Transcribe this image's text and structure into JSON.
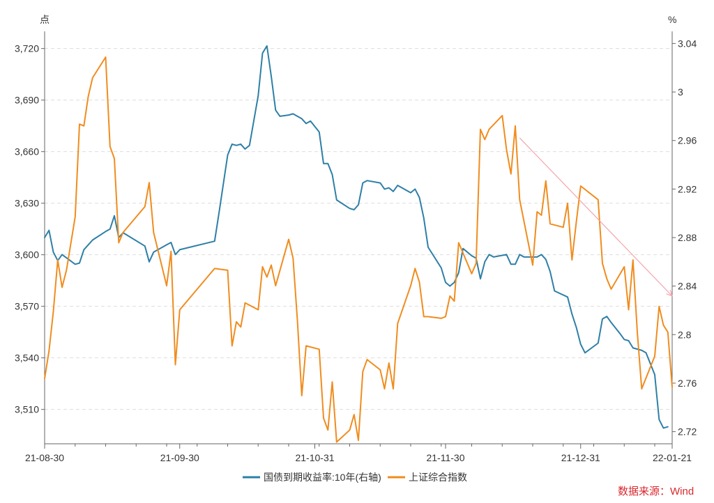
{
  "chart_data": {
    "type": "line",
    "title": "",
    "left_axis": {
      "unit_label": "点",
      "min": 3490,
      "max": 3730,
      "ticks": [
        3510,
        3540,
        3570,
        3600,
        3630,
        3660,
        3690,
        3720
      ],
      "tick_labels": [
        "3,510",
        "3,540",
        "3,570",
        "3,600",
        "3,630",
        "3,660",
        "3,690",
        "3,720"
      ]
    },
    "right_axis": {
      "unit_label": "%",
      "min": 2.71,
      "max": 3.05,
      "ticks": [
        2.72,
        2.76,
        2.8,
        2.84,
        2.88,
        2.92,
        2.96,
        3.0,
        3.04
      ],
      "tick_labels": [
        "2.72",
        "2.76",
        "2.8",
        "2.84",
        "2.88",
        "2.92",
        "2.96",
        "3",
        "3.04"
      ]
    },
    "x_axis": {
      "start": "2021-08-30",
      "end": "2022-01-21",
      "ticks": [
        "2021-08-30",
        "2021-09-30",
        "2021-10-31",
        "2021-11-30",
        "2021-12-31",
        "2022-01-21"
      ],
      "tick_labels": [
        "21-08-30",
        "21-09-30",
        "21-10-31",
        "21-11-30",
        "21-12-31",
        "22-01-21"
      ]
    },
    "grid": "horizontal-dashed",
    "legend_position": "bottom",
    "source": "数据来源：Wind",
    "series": [
      {
        "name": "国债到期收益率:10年(右轴)",
        "axis": "right",
        "color": "#2e7fa6",
        "points": [
          [
            "2021-08-30",
            2.88
          ],
          [
            "2021-08-31",
            2.886
          ],
          [
            "2021-09-01",
            2.868
          ],
          [
            "2021-09-02",
            2.861
          ],
          [
            "2021-09-03",
            2.866
          ],
          [
            "2021-09-06",
            2.858
          ],
          [
            "2021-09-07",
            2.859
          ],
          [
            "2021-09-08",
            2.87
          ],
          [
            "2021-09-10",
            2.878
          ],
          [
            "2021-09-13",
            2.885
          ],
          [
            "2021-09-14",
            2.887
          ],
          [
            "2021-09-15",
            2.898
          ],
          [
            "2021-09-16",
            2.88
          ],
          [
            "2021-09-17",
            2.884
          ],
          [
            "2021-09-22",
            2.873
          ],
          [
            "2021-09-23",
            2.86
          ],
          [
            "2021-09-24",
            2.868
          ],
          [
            "2021-09-26",
            2.872
          ],
          [
            "2021-09-27",
            2.874
          ],
          [
            "2021-09-28",
            2.876
          ],
          [
            "2021-09-29",
            2.866
          ],
          [
            "2021-09-30",
            2.87
          ],
          [
            "2021-10-08",
            2.877
          ],
          [
            "2021-10-09",
            2.9
          ],
          [
            "2021-10-11",
            2.948
          ],
          [
            "2021-10-12",
            2.957
          ],
          [
            "2021-10-13",
            2.956
          ],
          [
            "2021-10-14",
            2.957
          ],
          [
            "2021-10-15",
            2.953
          ],
          [
            "2021-10-16",
            2.956
          ],
          [
            "2021-10-18",
            2.997
          ],
          [
            "2021-10-19",
            3.032
          ],
          [
            "2021-10-20",
            3.038
          ],
          [
            "2021-10-21",
            3.013
          ],
          [
            "2021-10-22",
            2.985
          ],
          [
            "2021-10-23",
            2.98
          ],
          [
            "2021-10-25",
            2.981
          ],
          [
            "2021-10-26",
            2.982
          ],
          [
            "2021-10-27",
            2.98
          ],
          [
            "2021-10-28",
            2.978
          ],
          [
            "2021-10-29",
            2.974
          ],
          [
            "2021-10-30",
            2.976
          ],
          [
            "2021-11-01",
            2.967
          ],
          [
            "2021-11-02",
            2.941
          ],
          [
            "2021-11-03",
            2.941
          ],
          [
            "2021-11-04",
            2.932
          ],
          [
            "2021-11-05",
            2.911
          ],
          [
            "2021-11-08",
            2.904
          ],
          [
            "2021-11-09",
            2.903
          ],
          [
            "2021-11-10",
            2.907
          ],
          [
            "2021-11-11",
            2.925
          ],
          [
            "2021-11-12",
            2.927
          ],
          [
            "2021-11-15",
            2.925
          ],
          [
            "2021-11-16",
            2.92
          ],
          [
            "2021-11-17",
            2.921
          ],
          [
            "2021-11-18",
            2.918
          ],
          [
            "2021-11-19",
            2.923
          ],
          [
            "2021-11-22",
            2.917
          ],
          [
            "2021-11-23",
            2.92
          ],
          [
            "2021-11-24",
            2.913
          ],
          [
            "2021-11-25",
            2.896
          ],
          [
            "2021-11-26",
            2.872
          ],
          [
            "2021-11-29",
            2.855
          ],
          [
            "2021-11-30",
            2.843
          ],
          [
            "2021-12-01",
            2.84
          ],
          [
            "2021-12-02",
            2.843
          ],
          [
            "2021-12-03",
            2.851
          ],
          [
            "2021-12-04",
            2.871
          ],
          [
            "2021-12-06",
            2.865
          ],
          [
            "2021-12-07",
            2.863
          ],
          [
            "2021-12-08",
            2.846
          ],
          [
            "2021-12-09",
            2.86
          ],
          [
            "2021-12-10",
            2.866
          ],
          [
            "2021-12-11",
            2.864
          ],
          [
            "2021-12-14",
            2.866
          ],
          [
            "2021-12-15",
            2.858
          ],
          [
            "2021-12-16",
            2.858
          ],
          [
            "2021-12-17",
            2.866
          ],
          [
            "2021-12-18",
            2.864
          ],
          [
            "2021-12-20",
            2.864
          ],
          [
            "2021-12-21",
            2.864
          ],
          [
            "2021-12-22",
            2.866
          ],
          [
            "2021-12-23",
            2.862
          ],
          [
            "2021-12-24",
            2.852
          ],
          [
            "2021-12-25",
            2.836
          ],
          [
            "2021-12-28",
            2.831
          ],
          [
            "2021-12-29",
            2.817
          ],
          [
            "2021-12-30",
            2.806
          ],
          [
            "2021-12-31",
            2.792
          ],
          [
            "2022-01-01",
            2.785
          ],
          [
            "2022-01-04",
            2.793
          ],
          [
            "2022-01-05",
            2.813
          ],
          [
            "2022-01-06",
            2.815
          ],
          [
            "2022-01-07",
            2.81
          ],
          [
            "2022-01-09",
            2.801
          ],
          [
            "2022-01-10",
            2.796
          ],
          [
            "2022-01-11",
            2.795
          ],
          [
            "2022-01-12",
            2.789
          ],
          [
            "2022-01-14",
            2.787
          ],
          [
            "2022-01-15",
            2.785
          ],
          [
            "2022-01-17",
            2.767
          ],
          [
            "2022-01-18",
            2.73
          ],
          [
            "2022-01-19",
            2.723
          ],
          [
            "2022-01-20",
            2.724
          ]
        ]
      },
      {
        "name": "上证综合指数",
        "axis": "left",
        "color": "#f08c1e",
        "points": [
          [
            "2021-08-30",
            3528
          ],
          [
            "2021-08-31",
            3544
          ],
          [
            "2021-09-01",
            3567
          ],
          [
            "2021-09-02",
            3597
          ],
          [
            "2021-09-03",
            3581
          ],
          [
            "2021-09-04",
            3591
          ],
          [
            "2021-09-06",
            3622
          ],
          [
            "2021-09-07",
            3676
          ],
          [
            "2021-09-08",
            3675
          ],
          [
            "2021-09-09",
            3692
          ],
          [
            "2021-09-10",
            3703
          ],
          [
            "2021-09-13",
            3715
          ],
          [
            "2021-09-14",
            3663
          ],
          [
            "2021-09-15",
            3656
          ],
          [
            "2021-09-16",
            3607
          ],
          [
            "2021-09-17",
            3613
          ],
          [
            "2021-09-22",
            3628
          ],
          [
            "2021-09-23",
            3642
          ],
          [
            "2021-09-24",
            3613
          ],
          [
            "2021-09-27",
            3582
          ],
          [
            "2021-09-28",
            3602
          ],
          [
            "2021-09-29",
            3536
          ],
          [
            "2021-09-30",
            3568
          ],
          [
            "2021-10-08",
            3592
          ],
          [
            "2021-10-11",
            3591
          ],
          [
            "2021-10-12",
            3547
          ],
          [
            "2021-10-13",
            3561
          ],
          [
            "2021-10-14",
            3558
          ],
          [
            "2021-10-15",
            3572
          ],
          [
            "2021-10-18",
            3568
          ],
          [
            "2021-10-19",
            3593
          ],
          [
            "2021-10-20",
            3587
          ],
          [
            "2021-10-21",
            3594
          ],
          [
            "2021-10-22",
            3582
          ],
          [
            "2021-10-25",
            3609
          ],
          [
            "2021-10-26",
            3598
          ],
          [
            "2021-10-27",
            3562
          ],
          [
            "2021-10-28",
            3518
          ],
          [
            "2021-10-29",
            3547
          ],
          [
            "2021-11-01",
            3545
          ],
          [
            "2021-11-02",
            3505
          ],
          [
            "2021-11-03",
            3498
          ],
          [
            "2021-11-04",
            3526
          ],
          [
            "2021-11-05",
            3491
          ],
          [
            "2021-11-08",
            3498
          ],
          [
            "2021-11-09",
            3507
          ],
          [
            "2021-11-10",
            3492
          ],
          [
            "2021-11-11",
            3532
          ],
          [
            "2021-11-12",
            3539
          ],
          [
            "2021-11-15",
            3533
          ],
          [
            "2021-11-16",
            3522
          ],
          [
            "2021-11-17",
            3537
          ],
          [
            "2021-11-18",
            3522
          ],
          [
            "2021-11-19",
            3560
          ],
          [
            "2021-11-22",
            3582
          ],
          [
            "2021-11-23",
            3592
          ],
          [
            "2021-11-24",
            3584
          ],
          [
            "2021-11-25",
            3564
          ],
          [
            "2021-11-26",
            3564
          ],
          [
            "2021-11-29",
            3563
          ],
          [
            "2021-11-30",
            3564
          ],
          [
            "2021-12-01",
            3576
          ],
          [
            "2021-12-02",
            3573
          ],
          [
            "2021-12-03",
            3607
          ],
          [
            "2021-12-06",
            3589
          ],
          [
            "2021-12-07",
            3595
          ],
          [
            "2021-12-08",
            3673
          ],
          [
            "2021-12-09",
            3667
          ],
          [
            "2021-12-10",
            3673
          ],
          [
            "2021-12-13",
            3681
          ],
          [
            "2021-12-14",
            3661
          ],
          [
            "2021-12-15",
            3647
          ],
          [
            "2021-12-16",
            3675
          ],
          [
            "2021-12-17",
            3632
          ],
          [
            "2021-12-20",
            3594
          ],
          [
            "2021-12-21",
            3625
          ],
          [
            "2021-12-22",
            3623
          ],
          [
            "2021-12-23",
            3643
          ],
          [
            "2021-12-24",
            3618
          ],
          [
            "2021-12-27",
            3616
          ],
          [
            "2021-12-28",
            3630
          ],
          [
            "2021-12-29",
            3597
          ],
          [
            "2021-12-30",
            3619
          ],
          [
            "2021-12-31",
            3640
          ],
          [
            "2022-01-04",
            3632
          ],
          [
            "2022-01-05",
            3595
          ],
          [
            "2022-01-06",
            3586
          ],
          [
            "2022-01-07",
            3580
          ],
          [
            "2022-01-10",
            3593
          ],
          [
            "2022-01-11",
            3568
          ],
          [
            "2022-01-12",
            3597
          ],
          [
            "2022-01-13",
            3555
          ],
          [
            "2022-01-14",
            3522
          ],
          [
            "2022-01-17",
            3541
          ],
          [
            "2022-01-18",
            3570
          ],
          [
            "2022-01-19",
            3559
          ],
          [
            "2022-01-20",
            3555
          ],
          [
            "2022-01-21",
            3523
          ]
        ]
      }
    ],
    "trend_line": {
      "axis": "left",
      "color": "#f4a3ad",
      "from": [
        "2021-12-17",
        3668
      ],
      "to": [
        "2022-01-21",
        3576
      ]
    }
  }
}
